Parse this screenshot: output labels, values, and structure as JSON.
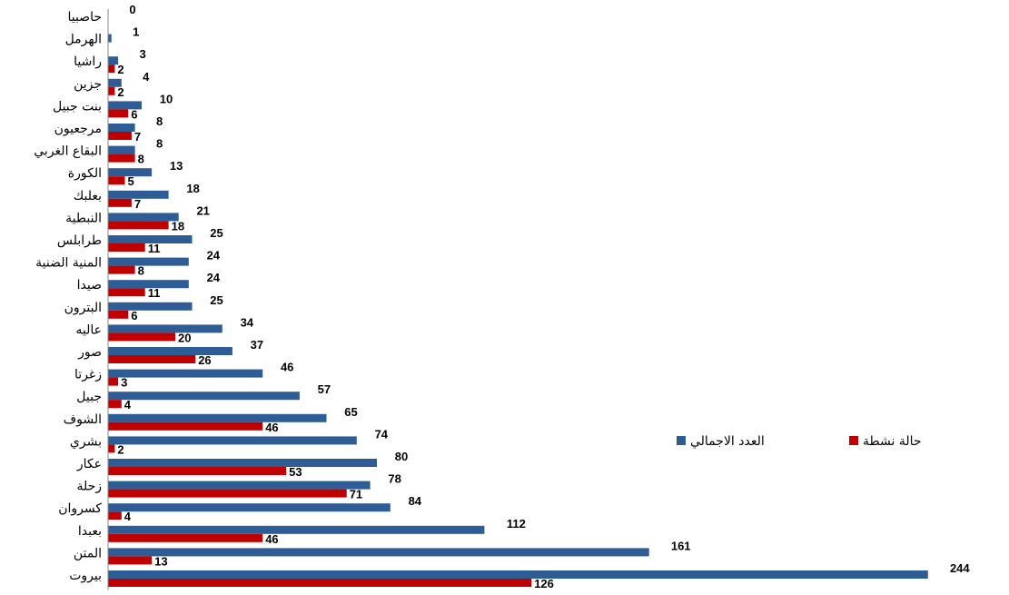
{
  "chart_data": {
    "type": "bar",
    "orientation": "horizontal",
    "categories": [
      "حاصبيا",
      "الهرمل",
      "راشيا",
      "جزين",
      "بنت جبيل",
      "مرجعيون",
      "البقاع الغربي",
      "الكورة",
      "بعلبك",
      "النبطية",
      "طرابلس",
      "المنية الضنية",
      "صيدا",
      "البترون",
      "عاليه",
      "صور",
      "زغرتا",
      "جبيل",
      "الشوف",
      "بشري",
      "عكار",
      "زحلة",
      "كسروان",
      "بعبدا",
      "المتن",
      "بيروت"
    ],
    "series": [
      {
        "name": "العدد الاجمالي",
        "color": "#2E5D96",
        "values": [
          0,
          1,
          3,
          4,
          10,
          8,
          8,
          13,
          18,
          21,
          25,
          24,
          24,
          25,
          34,
          37,
          46,
          57,
          65,
          74,
          80,
          78,
          84,
          112,
          161,
          244
        ]
      },
      {
        "name": "حالة نشطة",
        "color": "#C00000",
        "values": [
          null,
          null,
          2,
          2,
          6,
          7,
          8,
          5,
          7,
          18,
          11,
          8,
          11,
          6,
          20,
          26,
          3,
          4,
          46,
          2,
          53,
          71,
          4,
          46,
          13,
          126
        ]
      }
    ],
    "xlim": [
      0,
      244
    ],
    "grid": false,
    "legend_position": "right"
  }
}
